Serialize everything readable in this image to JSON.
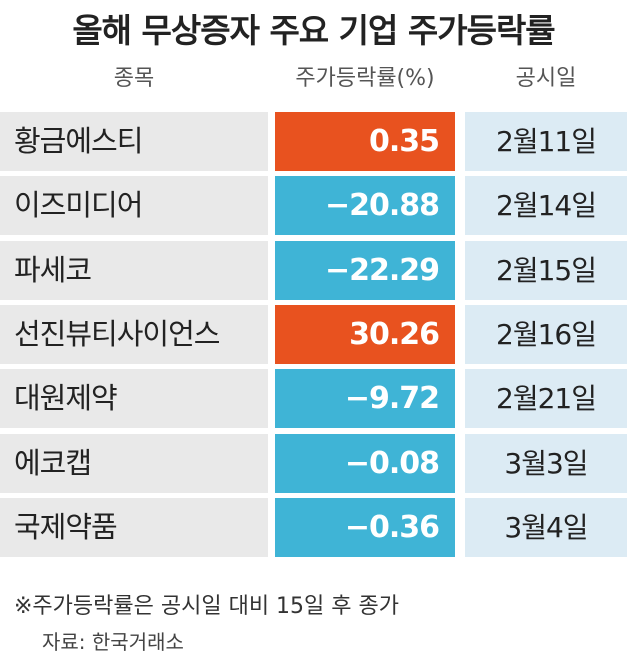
{
  "title": "올해 무상증자 주요 기업 주가등락률",
  "table": {
    "header": [
      "종목",
      "주가등락률(%)",
      "공시일"
    ],
    "rows": [
      [
        "황금에스티",
        "0.35",
        "2월11일"
      ],
      [
        "이즈미디어",
        "−20.88",
        "2월14일"
      ],
      [
        "파세코",
        "−22.29",
        "2월15일"
      ],
      [
        "선진뷰티사이언스",
        "30.26",
        "2월16일"
      ],
      [
        "대원제약",
        "−9.72",
        "2월21일"
      ],
      [
        "에코캡",
        "−0.08",
        "3월3일"
      ],
      [
        "국제약품",
        "−0.36",
        "3월4일"
      ]
    ]
  },
  "footnote": "※주가등락률은 공시일 대비 15일 후 종가",
  "source": "자료: 한국거래소"
}
